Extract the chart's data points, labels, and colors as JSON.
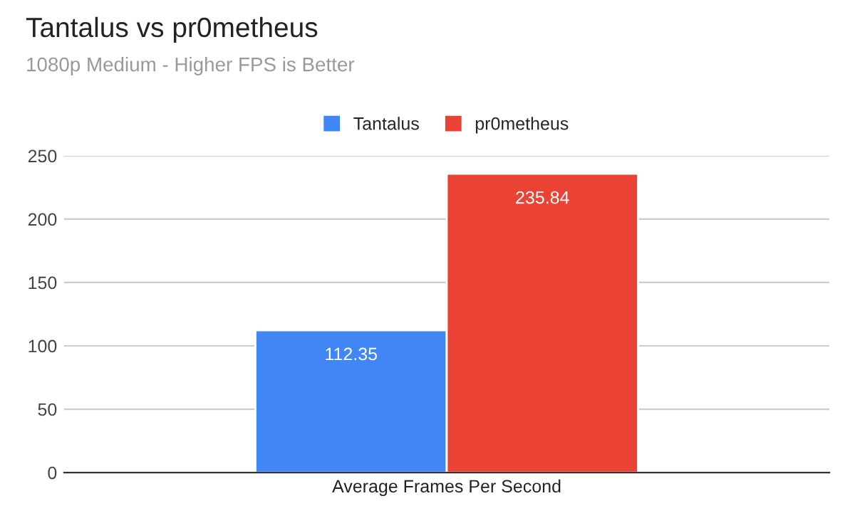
{
  "chart_data": {
    "type": "bar",
    "title": "Tantalus vs pr0metheus",
    "subtitle": "1080p Medium - Higher FPS is Better",
    "categories": [
      "Average Frames Per Second"
    ],
    "series": [
      {
        "name": "Tantalus",
        "color": "#4285f4",
        "values": [
          112.35
        ]
      },
      {
        "name": "pr0metheus",
        "color": "#ea4335",
        "values": [
          235.84
        ]
      }
    ],
    "ylim": [
      0,
      250
    ],
    "yticks": [
      0,
      50,
      100,
      150,
      200,
      250
    ],
    "grid": "y",
    "legend": "top",
    "data_labels": true
  }
}
